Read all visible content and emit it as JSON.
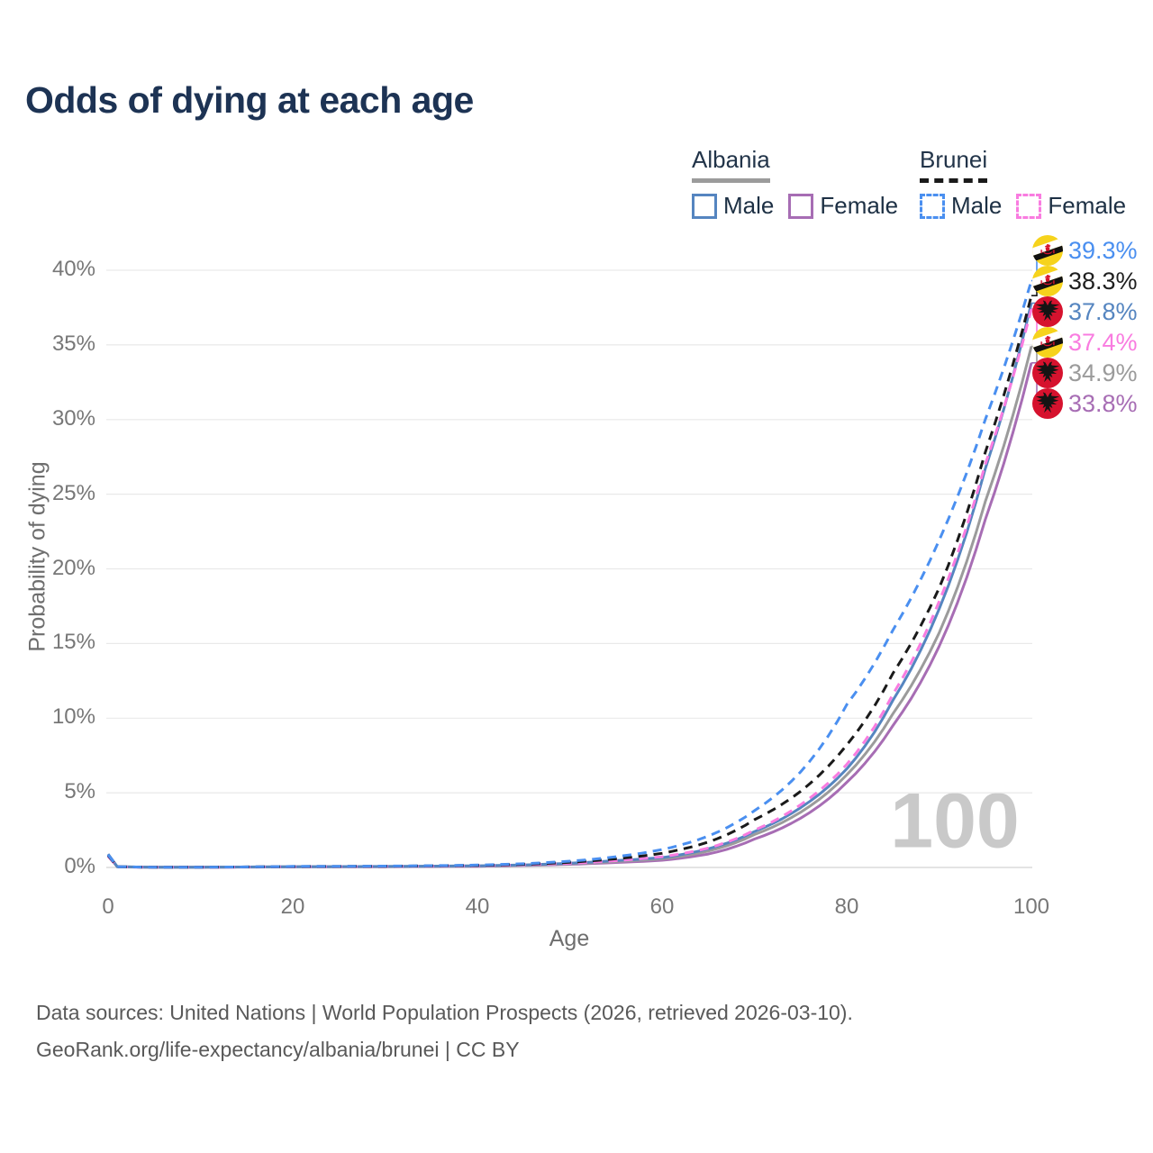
{
  "title": "Odds of dying at each age",
  "legend": {
    "albania": {
      "label": "Albania",
      "male_label": "Male",
      "female_label": "Female"
    },
    "brunei": {
      "label": "Brunei",
      "male_label": "Male",
      "female_label": "Female"
    }
  },
  "axes": {
    "x_label": "Age",
    "y_label": "Probability of dying"
  },
  "watermark": "100",
  "end_labels": [
    {
      "value": "39.3%",
      "series": "Brunei Male",
      "flag": "brunei-flag-icon",
      "color": "#4a8ff0"
    },
    {
      "value": "38.3%",
      "series": "Brunei",
      "flag": "brunei-flag-icon",
      "color": "#1f1f1f"
    },
    {
      "value": "37.8%",
      "series": "Albania Male",
      "flag": "albania-flag-icon",
      "color": "#5585c0"
    },
    {
      "value": "37.4%",
      "series": "Brunei Female",
      "flag": "brunei-flag-icon",
      "color": "#f97ce0"
    },
    {
      "value": "34.9%",
      "series": "Albania",
      "flag": "albania-flag-icon",
      "color": "#9b9b9b"
    },
    {
      "value": "33.8%",
      "series": "Albania Female",
      "flag": "albania-flag-icon",
      "color": "#a76db4"
    }
  ],
  "flag_colors": {
    "brunei": {
      "yellow": "#f6d31c",
      "white": "#ffffff",
      "black": "#111111",
      "red": "#d6122e"
    },
    "albania": {
      "red": "#d6122e",
      "black": "#141414"
    }
  },
  "footer": {
    "line1": "Data sources: United Nations | World Population Prospects (2026, retrieved 2026-03-10).",
    "line2": "GeoRank.org/life-expectancy/albania/brunei | CC BY"
  },
  "chart_data": {
    "type": "line",
    "title": "Odds of dying at each age",
    "xlabel": "Age",
    "ylabel": "Probability of dying",
    "x_ticks": [
      0,
      20,
      40,
      60,
      80,
      100
    ],
    "y_ticks": [
      "0%",
      "5%",
      "10%",
      "15%",
      "20%",
      "25%",
      "30%",
      "35%",
      "40%"
    ],
    "y_grid_pct": [
      0,
      5,
      10,
      15,
      20,
      25,
      30,
      35,
      40
    ],
    "xlim": [
      0,
      100
    ],
    "ylim_pct": [
      0,
      41.5
    ],
    "grid": true,
    "legend_position": "top-right",
    "ages": [
      0,
      1,
      5,
      10,
      20,
      30,
      40,
      45,
      50,
      55,
      60,
      65,
      70,
      75,
      80,
      85,
      90,
      95,
      100
    ],
    "series": [
      {
        "name": "Brunei Male",
        "color": "#4a8ff0",
        "dashed": true,
        "end_value_pct": 39.3,
        "values": [
          0.85,
          0.05,
          0.02,
          0.02,
          0.07,
          0.09,
          0.16,
          0.25,
          0.42,
          0.72,
          1.2,
          2.1,
          3.8,
          6.4,
          10.9,
          15.9,
          21.9,
          30.0,
          39.3
        ]
      },
      {
        "name": "Brunei",
        "color": "#1a1a1a",
        "dashed": true,
        "end_value_pct": 38.3,
        "values": [
          0.8,
          0.045,
          0.02,
          0.02,
          0.06,
          0.08,
          0.14,
          0.21,
          0.35,
          0.58,
          0.95,
          1.7,
          3.2,
          5.1,
          8.2,
          13.0,
          18.7,
          27.8,
          38.3
        ]
      },
      {
        "name": "Albania Male",
        "color": "#5585c0",
        "dashed": false,
        "end_value_pct": 37.8,
        "values": [
          0.9,
          0.05,
          0.02,
          0.02,
          0.05,
          0.07,
          0.11,
          0.17,
          0.29,
          0.46,
          0.66,
          1.25,
          2.4,
          4.0,
          6.6,
          11.2,
          17.3,
          26.7,
          37.8
        ]
      },
      {
        "name": "Brunei Female",
        "color": "#f97ce0",
        "dashed": true,
        "end_value_pct": 37.4,
        "values": [
          0.75,
          0.04,
          0.015,
          0.015,
          0.05,
          0.07,
          0.12,
          0.18,
          0.28,
          0.45,
          0.72,
          1.3,
          2.5,
          4.2,
          6.9,
          11.6,
          17.8,
          27.0,
          37.4
        ]
      },
      {
        "name": "Albania",
        "color": "#9b9b9b",
        "dashed": false,
        "end_value_pct": 34.9,
        "values": [
          0.85,
          0.045,
          0.02,
          0.02,
          0.045,
          0.06,
          0.1,
          0.15,
          0.25,
          0.4,
          0.58,
          1.1,
          2.2,
          3.7,
          6.2,
          10.3,
          15.7,
          24.5,
          34.9
        ]
      },
      {
        "name": "Albania Female",
        "color": "#a76db4",
        "dashed": false,
        "end_value_pct": 33.8,
        "values": [
          0.8,
          0.04,
          0.015,
          0.015,
          0.04,
          0.05,
          0.08,
          0.13,
          0.21,
          0.33,
          0.48,
          0.9,
          1.9,
          3.3,
          5.7,
          9.5,
          14.8,
          23.3,
          33.8
        ]
      }
    ],
    "draw_order": [
      5,
      4,
      2,
      3,
      1,
      0
    ]
  }
}
